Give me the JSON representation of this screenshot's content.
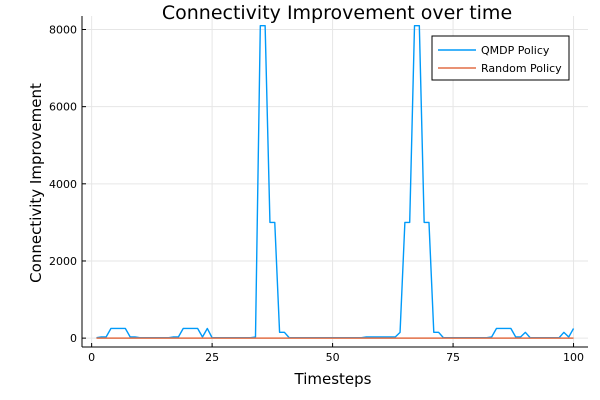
{
  "chart_data": {
    "type": "line",
    "title": "Connectivity Improvement over time",
    "xlabel": "Timesteps",
    "ylabel": "Connectivity Improvement",
    "xlim": [
      -2,
      103
    ],
    "ylim": [
      -230,
      8350
    ],
    "xticks": [
      0,
      25,
      50,
      75,
      100
    ],
    "yticks": [
      0,
      2000,
      4000,
      6000,
      8000
    ],
    "grid": true,
    "legend_position": "top-right",
    "series": [
      {
        "name": "QMDP Policy",
        "color": "#009af9",
        "x": [
          1,
          2,
          3,
          4,
          5,
          6,
          7,
          8,
          9,
          10,
          11,
          12,
          13,
          14,
          15,
          16,
          17,
          18,
          19,
          20,
          21,
          22,
          23,
          24,
          25,
          26,
          27,
          28,
          29,
          30,
          31,
          32,
          33,
          34,
          35,
          36,
          37,
          38,
          39,
          40,
          41,
          42,
          43,
          44,
          45,
          46,
          47,
          48,
          49,
          50,
          51,
          52,
          53,
          54,
          55,
          56,
          57,
          58,
          59,
          60,
          61,
          62,
          63,
          64,
          65,
          66,
          67,
          68,
          69,
          70,
          71,
          72,
          73,
          74,
          75,
          76,
          77,
          78,
          79,
          80,
          81,
          82,
          83,
          84,
          85,
          86,
          87,
          88,
          89,
          90,
          91,
          92,
          93,
          94,
          95,
          96,
          97,
          98,
          99,
          100
        ],
        "values": [
          10,
          30,
          30,
          250,
          250,
          250,
          250,
          30,
          30,
          10,
          10,
          10,
          10,
          10,
          10,
          10,
          30,
          30,
          250,
          250,
          250,
          250,
          30,
          250,
          10,
          10,
          10,
          10,
          10,
          10,
          10,
          10,
          10,
          30,
          8100,
          8100,
          3000,
          3000,
          150,
          150,
          10,
          10,
          10,
          10,
          10,
          10,
          10,
          10,
          10,
          10,
          10,
          10,
          10,
          10,
          10,
          10,
          30,
          30,
          30,
          30,
          30,
          30,
          30,
          150,
          3000,
          3000,
          8100,
          8100,
          3000,
          3000,
          150,
          150,
          10,
          10,
          10,
          10,
          10,
          10,
          10,
          10,
          10,
          10,
          30,
          250,
          250,
          250,
          250,
          30,
          30,
          150,
          10,
          10,
          10,
          10,
          10,
          10,
          10,
          150,
          30,
          250
        ]
      },
      {
        "name": "Random Policy",
        "color": "#e26f46",
        "x": [
          1,
          100
        ],
        "values": [
          0,
          0
        ]
      }
    ]
  }
}
